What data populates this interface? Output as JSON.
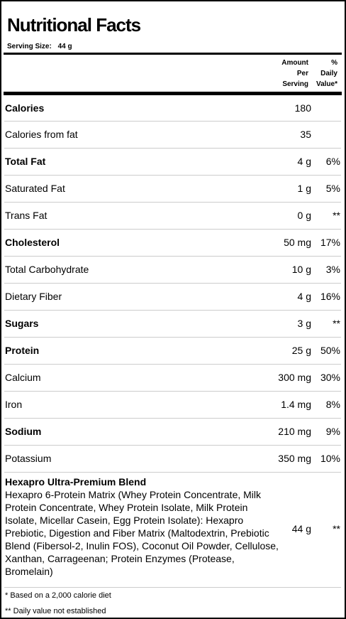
{
  "label": {
    "title": "Nutritional Facts",
    "serving_label": "Serving Size:",
    "serving_value": "44 g",
    "header": {
      "amount_line1": "Amount",
      "amount_line2": "Per",
      "amount_line3": "Serving",
      "dv_line1": "%",
      "dv_line2": "Daily",
      "dv_line3": "Value*"
    },
    "rows": [
      {
        "name": "Calories",
        "amount": "180",
        "pct": ""
      },
      {
        "name": "Calories from fat",
        "amount": "35",
        "pct": ""
      },
      {
        "name": "Total Fat",
        "amount": "4 g",
        "pct": "6%"
      },
      {
        "name": "Saturated Fat",
        "amount": "1 g",
        "pct": "5%"
      },
      {
        "name": "Trans Fat",
        "amount": "0 g",
        "pct": "**"
      },
      {
        "name": "Cholesterol",
        "amount": "50 mg",
        "pct": "17%"
      },
      {
        "name": "Total Carbohydrate",
        "amount": "10 g",
        "pct": "3%"
      },
      {
        "name": "Dietary Fiber",
        "amount": "4 g",
        "pct": "16%"
      },
      {
        "name": "Sugars",
        "amount": "3 g",
        "pct": "**"
      },
      {
        "name": "Protein",
        "amount": "25 g",
        "pct": "50%"
      },
      {
        "name": "Calcium",
        "amount": "300 mg",
        "pct": "30%"
      },
      {
        "name": "Iron",
        "amount": "1.4 mg",
        "pct": "8%"
      },
      {
        "name": "Sodium",
        "amount": "210 mg",
        "pct": "9%"
      },
      {
        "name": "Potassium",
        "amount": "350 mg",
        "pct": "10%"
      }
    ],
    "blend": {
      "name": "Hexapro Ultra-Premium Blend",
      "description": "Hexapro 6-Protein Matrix (Whey Protein Concentrate, Milk Protein Concentrate, Whey Protein Isolate, Milk Protein Isolate, Micellar Casein, Egg Protein Isolate): Hexapro Prebiotic, Digestion and Fiber Matrix (Maltodextrin, Prebiotic Blend (Fibersol-2, Inulin FOS), Coconut Oil Powder, Cellulose, Xanthan, Carrageenan; Protein Enzymes (Protease, Bromelain)",
      "amount": "44 g",
      "pct": "**"
    },
    "footnotes": [
      "* Based on a 2,000 calorie diet",
      "** Daily value not established"
    ]
  }
}
